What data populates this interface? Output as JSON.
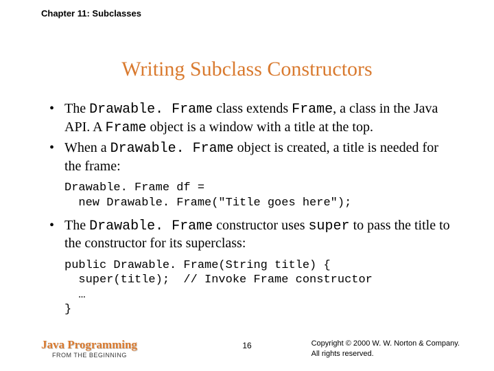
{
  "header": {
    "chapter": "Chapter 11: Subclasses"
  },
  "title": "Writing Subclass Constructors",
  "bullets": {
    "b1_pre": "The ",
    "b1_code1": "Drawable. Frame",
    "b1_mid1": " class extends ",
    "b1_code2": "Frame",
    "b1_mid2": ", a class in the Java API. A ",
    "b1_code3": "Frame",
    "b1_post": " object is a window with a title at the top.",
    "b2_pre": "When a ",
    "b2_code1": "Drawable. Frame",
    "b2_post": " object is created, a title is needed for the frame:",
    "b3_pre": "The ",
    "b3_code1": "Drawable. Frame",
    "b3_mid": " constructor uses ",
    "b3_code2": "super",
    "b3_post": " to pass the title to the constructor for its superclass:"
  },
  "code": {
    "block1": "Drawable. Frame df =\n  new Drawable. Frame(\"Title goes here\");",
    "block2": "public Drawable. Frame(String title) {\n  super(title);  // Invoke Frame constructor\n  …\n}"
  },
  "footer": {
    "brand": "Java Programming",
    "subtitle": "FROM THE BEGINNING",
    "page": "16",
    "copyright1": "Copyright © 2000 W. W. Norton & Company.",
    "copyright2": "All rights reserved."
  },
  "colors": {
    "accent": "#d97a2f",
    "text": "#000000",
    "background": "#ffffff"
  }
}
